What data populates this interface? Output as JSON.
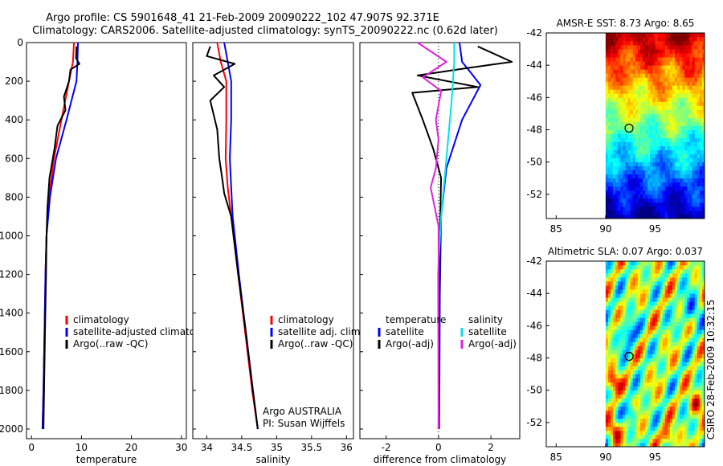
{
  "header": {
    "line1": "Argo profile: CS 5901648_41 21-Feb-2009 20090222_102 47.907S 92.371E",
    "line2": "Climatology: CARS2006. Satellite-adjusted climatology: synTS_20090222.nc (0.62d later)"
  },
  "side_label": "CSIRO 28-Feb-2009 10:32:15",
  "colors": {
    "climatology": "#ff0000",
    "satellite": "#0000ff",
    "argo": "#000000",
    "sal_satellite": "#00e5e5",
    "sal_argo": "#e020e0"
  },
  "chart_data": [
    {
      "type": "line",
      "id": "temperature",
      "xlabel": "temperature",
      "xlim": [
        -1,
        31
      ],
      "ylim": [
        0,
        2050
      ],
      "xticks": [
        0,
        10,
        20,
        30
      ],
      "yticks": [
        0,
        200,
        400,
        600,
        800,
        1000,
        1200,
        1400,
        1600,
        1800,
        2000
      ],
      "y_reversed": true,
      "series": [
        {
          "name": "climatology",
          "color": "#ff0000",
          "x": [
            8.5,
            8.3,
            7.5,
            6.0,
            4.5,
            3.5,
            3.0,
            2.8,
            2.6,
            2.4,
            2.2
          ],
          "y": [
            0,
            100,
            200,
            400,
            600,
            800,
            1000,
            1200,
            1500,
            1800,
            2000
          ]
        },
        {
          "name": "satellite-adjusted climatology",
          "color": "#0000ff",
          "x": [
            9.3,
            9.2,
            9.0,
            7.0,
            4.9,
            3.7,
            3.0,
            2.8,
            2.6,
            2.4,
            2.2
          ],
          "y": [
            0,
            100,
            200,
            400,
            600,
            800,
            1000,
            1200,
            1500,
            1800,
            2000
          ]
        },
        {
          "name": "Argo(..raw -QC)",
          "color": "#000000",
          "x": [
            9.0,
            8.9,
            9.6,
            7.8,
            7.5,
            6.5,
            6.8,
            5.2,
            4.6,
            3.6,
            3.2,
            3.0,
            2.9,
            2.7,
            2.4
          ],
          "y": [
            20,
            80,
            110,
            140,
            200,
            280,
            350,
            430,
            550,
            700,
            850,
            1000,
            1200,
            1500,
            2000
          ]
        }
      ],
      "legend": [
        "climatology",
        "satellite-adjusted climatology",
        "Argo(..raw -QC)"
      ]
    },
    {
      "type": "line",
      "id": "salinity",
      "xlabel": "salinity",
      "xlim": [
        33.8,
        36.1
      ],
      "ylim": [
        0,
        2050
      ],
      "xticks": [
        34,
        34.5,
        35,
        35.5,
        36
      ],
      "y_reversed": true,
      "series": [
        {
          "name": "climatology",
          "color": "#ff0000",
          "x": [
            34.15,
            34.2,
            34.28,
            34.28,
            34.27,
            34.3,
            34.35,
            34.45,
            34.55,
            34.65,
            34.73
          ],
          "y": [
            0,
            100,
            200,
            400,
            600,
            750,
            900,
            1200,
            1500,
            1800,
            2000
          ]
        },
        {
          "name": "satellite adj. clim.",
          "color": "#0000ff",
          "x": [
            34.25,
            34.3,
            34.35,
            34.35,
            34.33,
            34.35,
            34.37,
            34.46,
            34.56,
            34.66,
            34.73
          ],
          "y": [
            0,
            100,
            200,
            400,
            600,
            750,
            900,
            1200,
            1500,
            1800,
            2000
          ]
        },
        {
          "name": "Argo(..raw -QC)",
          "color": "#000000",
          "x": [
            34.05,
            34.0,
            34.4,
            34.1,
            34.25,
            34.05,
            34.15,
            34.18,
            34.22,
            34.25,
            34.35,
            34.45,
            34.56,
            34.66,
            34.73
          ],
          "y": [
            20,
            70,
            110,
            170,
            230,
            300,
            450,
            600,
            700,
            780,
            900,
            1200,
            1500,
            1800,
            2000
          ]
        }
      ],
      "legend": [
        "climatology",
        "satellite adj. clim.",
        "Argo(..raw -QC)"
      ],
      "annotation": [
        "Argo AUSTRALIA",
        "PI: Susan Wijffels"
      ]
    },
    {
      "type": "line",
      "id": "difference",
      "xlabel": "difference from climatology",
      "xlim": [
        -3.0,
        3.1
      ],
      "ylim": [
        0,
        2050
      ],
      "xticks": [
        -2,
        0,
        2
      ],
      "y_reversed": true,
      "series": [
        {
          "name": "temperature satellite",
          "color": "#0000ff",
          "x": [
            0.8,
            0.9,
            1.2,
            1.6,
            0.9,
            0.3,
            0.1,
            0.05,
            0.03
          ],
          "y": [
            0,
            100,
            150,
            220,
            400,
            650,
            900,
            1300,
            2000
          ]
        },
        {
          "name": "temperature Argo(-adj)",
          "color": "#000000",
          "x": [
            1.5,
            2.8,
            1.2,
            -0.8,
            1.5,
            -1.0,
            -0.6,
            -0.2,
            0.1,
            0.05,
            0.0
          ],
          "y": [
            20,
            100,
            130,
            170,
            230,
            260,
            400,
            550,
            700,
            1000,
            2000
          ]
        },
        {
          "name": "salinity satellite",
          "color": "#00e5e5",
          "x": [
            0.6,
            0.6,
            0.5,
            0.3,
            0.1,
            -0.02,
            0.0
          ],
          "y": [
            0,
            100,
            300,
            600,
            900,
            1200,
            2000
          ]
        },
        {
          "name": "salinity Argo(-adj)",
          "color": "#e020e0",
          "x": [
            -0.8,
            0.3,
            -0.6,
            0.1,
            -0.1,
            0.0,
            -0.1,
            -0.3,
            0.0,
            0.0
          ],
          "y": [
            0,
            100,
            180,
            250,
            400,
            500,
            650,
            750,
            950,
            2000
          ]
        }
      ],
      "legend_headers": [
        "temperature",
        "salinity"
      ],
      "legend": [
        "satellite",
        "Argo(-adj)",
        "satellite",
        "Argo(-adj)"
      ]
    },
    {
      "type": "heatmap",
      "id": "sst",
      "title": "AMSR-E SST: 8.73 Argo: 8.65",
      "xlim": [
        84,
        100
      ],
      "ylim": [
        -53.5,
        -42
      ],
      "xticks": [
        85,
        90,
        95
      ],
      "yticks": [
        -42,
        -44,
        -46,
        -48,
        -50,
        -52
      ],
      "data_x_start": 90,
      "marker": {
        "lon": 92.37,
        "lat": -47.9
      },
      "value_range": [
        5.5,
        12.5
      ]
    },
    {
      "type": "heatmap",
      "id": "sla",
      "title": "Altimetric SLA: 0.07 Argo: 0.037",
      "xlim": [
        84,
        100
      ],
      "ylim": [
        -53.5,
        -42
      ],
      "xticks": [
        85,
        90,
        95
      ],
      "yticks": [
        -42,
        -44,
        -46,
        -48,
        -50,
        -52
      ],
      "data_x_start": 90,
      "marker": {
        "lon": 92.37,
        "lat": -47.9
      },
      "value_range": [
        -0.3,
        0.3
      ]
    }
  ]
}
